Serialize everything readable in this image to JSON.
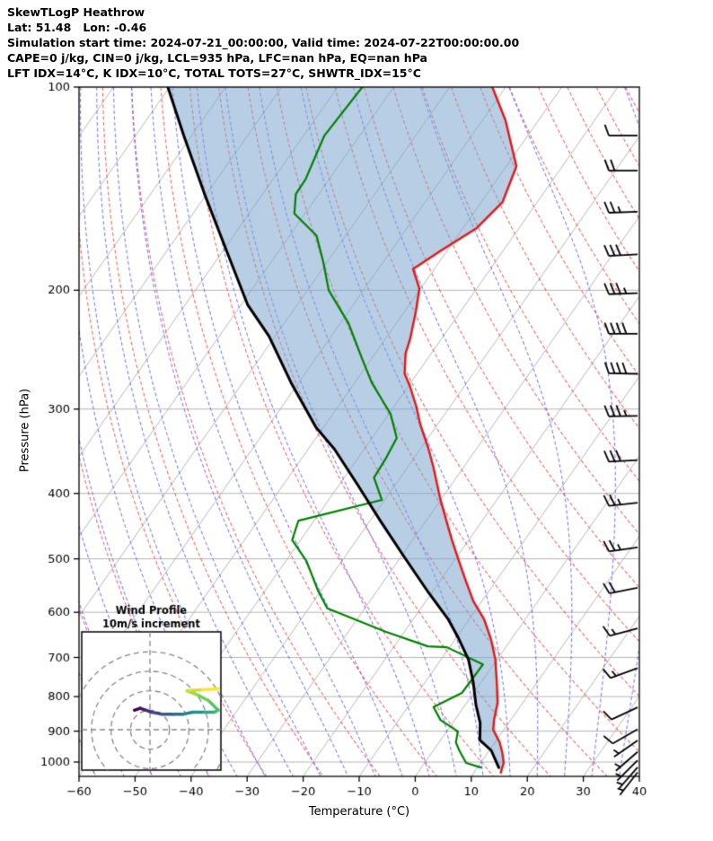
{
  "header": {
    "line1": "SkewTLogP Heathrow",
    "line2": "Lat: 51.48   Lon: -0.46",
    "line3": "Simulation start time: 2024-07-21_00:00:00, Valid time: 2024-07-22T00:00:00.00",
    "line4": "CAPE=0 j/kg, CIN=0 j/kg, LCL=935 hPa, LFC=nan hPa, EQ=nan hPa",
    "line5": "LFT IDX=14°C, K IDX=10°C, TOTAL TOTS=27°C, SHWTR_IDX=15°C"
  },
  "chart_data": {
    "type": "skewt-logp",
    "x_axis": {
      "label": "Temperature (°C)",
      "min": -60,
      "max": 40,
      "ticks": [
        -60,
        -50,
        -40,
        -30,
        -20,
        -10,
        0,
        10,
        20,
        30,
        40
      ]
    },
    "y_axis": {
      "label": "Pressure (hPa)",
      "min": 100,
      "max": 1050,
      "scale": "log",
      "ticks": [
        100,
        200,
        300,
        400,
        500,
        600,
        700,
        800,
        900,
        1000
      ]
    },
    "grid": {
      "isotherm_step": 10,
      "isotherm_color": "#b5b5b5",
      "pressure_line_color": "#aaaaaa",
      "dry_adiabats": {
        "start": -60,
        "end": 160,
        "step": 10,
        "color": "rgba(230,80,80,0.85)"
      },
      "moist_adiabats": {
        "start": -60,
        "end": 40,
        "step": 5,
        "color": "rgba(95,95,235,0.8)"
      },
      "cold_moist_adiabats": {
        "values": [
          -90,
          -80,
          -70
        ],
        "color": "rgba(140,80,180,0.9)"
      }
    },
    "series": {
      "temperature_color": "#ee1111",
      "dewpoint_color": "#008000",
      "parcel_color": "#000000",
      "cin_fill_color": "rgba(126,166,205,0.55)",
      "temperature_profile": [
        [
          100,
          -72.4
        ],
        [
          112,
          -65.9
        ],
        [
          131,
          -58.2
        ],
        [
          148,
          -56.2
        ],
        [
          162,
          -57.6
        ],
        [
          175,
          -61.2
        ],
        [
          186,
          -63.8
        ],
        [
          199,
          -60.2
        ],
        [
          215,
          -58.0
        ],
        [
          236,
          -55.6
        ],
        [
          248,
          -54.6
        ],
        [
          266,
          -52.2
        ],
        [
          277,
          -49.8
        ],
        [
          297,
          -46.1
        ],
        [
          316,
          -43.1
        ],
        [
          344,
          -38.5
        ],
        [
          365,
          -35.5
        ],
        [
          406,
          -30.4
        ],
        [
          439,
          -26.4
        ],
        [
          467,
          -23.2
        ],
        [
          504,
          -19.1
        ],
        [
          543,
          -15.0
        ],
        [
          578,
          -11.5
        ],
        [
          615,
          -7.3
        ],
        [
          658,
          -3.6
        ],
        [
          705,
          -0.3
        ],
        [
          762,
          2.8
        ],
        [
          817,
          5.5
        ],
        [
          866,
          7.0
        ],
        [
          896,
          8.1
        ],
        [
          935,
          10.8
        ],
        [
          967,
          12.5
        ],
        [
          1003,
          14.1
        ],
        [
          1037,
          14.8
        ]
      ],
      "dewpoint_profile": [
        [
          100,
          -95.6
        ],
        [
          118,
          -96.3
        ],
        [
          137,
          -94.2
        ],
        [
          144,
          -94.1
        ],
        [
          154,
          -91.9
        ],
        [
          166,
          -85.2
        ],
        [
          182,
          -80.6
        ],
        [
          200,
          -76.2
        ],
        [
          224,
          -68.5
        ],
        [
          253,
          -61.6
        ],
        [
          274,
          -57.0
        ],
        [
          305,
          -49.7
        ],
        [
          331,
          -45.6
        ],
        [
          354,
          -45.0
        ],
        [
          379,
          -44.7
        ],
        [
          409,
          -40.5
        ],
        [
          439,
          -52.8
        ],
        [
          469,
          -51.5
        ],
        [
          504,
          -46.3
        ],
        [
          557,
          -40.6
        ],
        [
          592,
          -36.7
        ],
        [
          641,
          -23.4
        ],
        [
          674,
          -14.0
        ],
        [
          676,
          -10.5
        ],
        [
          717,
          -1.9
        ],
        [
          790,
          -2.1
        ],
        [
          829,
          -5.4
        ],
        [
          867,
          -2.5
        ],
        [
          901,
          2.0
        ],
        [
          935,
          3.0
        ],
        [
          961,
          4.6
        ],
        [
          1003,
          7.4
        ],
        [
          1019,
          10.6
        ]
      ],
      "parcel_profile": [
        [
          100,
          -130.3
        ],
        [
          118,
          -121.4
        ],
        [
          144,
          -110.4
        ],
        [
          175,
          -99.3
        ],
        [
          210,
          -88.9
        ],
        [
          234,
          -81.1
        ],
        [
          274,
          -71.4
        ],
        [
          319,
          -61.4
        ],
        [
          344,
          -55.3
        ],
        [
          388,
          -46.8
        ],
        [
          439,
          -38.2
        ],
        [
          496,
          -29.5
        ],
        [
          561,
          -20.6
        ],
        [
          615,
          -13.7
        ],
        [
          656,
          -9.5
        ],
        [
          705,
          -5.1
        ],
        [
          762,
          -1.4
        ],
        [
          823,
          1.9
        ],
        [
          875,
          4.9
        ],
        [
          928,
          7.0
        ],
        [
          961,
          10.3
        ],
        [
          1019,
          13.8
        ]
      ]
    },
    "winds_mps": [
      [
        118,
        10,
        270
      ],
      [
        133,
        20,
        270
      ],
      [
        153,
        25,
        268
      ],
      [
        177,
        30,
        267
      ],
      [
        202,
        35,
        268
      ],
      [
        232,
        40,
        270
      ],
      [
        266,
        40,
        271
      ],
      [
        307,
        35,
        269
      ],
      [
        357,
        30,
        267
      ],
      [
        413,
        25,
        264
      ],
      [
        481,
        25,
        262
      ],
      [
        552,
        20,
        259
      ],
      [
        634,
        15,
        255
      ],
      [
        726,
        15,
        250
      ],
      [
        830,
        10,
        245
      ],
      [
        894,
        8,
        240
      ],
      [
        929,
        6,
        235
      ],
      [
        966,
        5,
        229
      ],
      [
        994,
        5,
        225
      ],
      [
        1018,
        4,
        221
      ],
      [
        1036,
        3,
        218
      ]
    ],
    "hodograph": {
      "title_line1": "Wind Profile",
      "title_line2": "10m/s increment",
      "ring_interval_mps": 10,
      "rings_mps": [
        10,
        20,
        30,
        40
      ],
      "trace_uv_mps": [
        [
          -8,
          10
        ],
        [
          -5,
          11
        ],
        [
          -2,
          10
        ],
        [
          1,
          9
        ],
        [
          6,
          8
        ],
        [
          12,
          8
        ],
        [
          17,
          8
        ],
        [
          22,
          9
        ],
        [
          28,
          9
        ],
        [
          33,
          9
        ],
        [
          35,
          10
        ],
        [
          30,
          15
        ],
        [
          24,
          18
        ],
        [
          19,
          20
        ],
        [
          27,
          20.5
        ],
        [
          35,
          21
        ]
      ],
      "colormap": [
        "#440154",
        "#3b528b",
        "#21918c",
        "#5ec962",
        "#fde725"
      ]
    }
  }
}
